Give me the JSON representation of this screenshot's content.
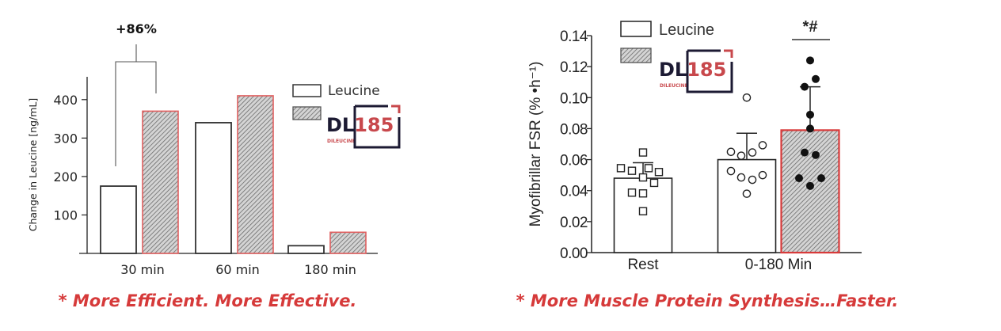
{
  "colors": {
    "accent_red": "#d63a3a",
    "logo_navy": "#1c1a33",
    "logo_red": "#c8484c",
    "bar_outline": "#222222",
    "hatch_fill": "#cfcfcf",
    "hatch_line": "#6a6a6a"
  },
  "chart_data": [
    {
      "type": "bar",
      "title": "",
      "ylabel": "Change in Leucine [ng/mL]",
      "xlabel": "",
      "ylim": [
        0,
        460
      ],
      "yticks": [
        100,
        200,
        300,
        400
      ],
      "categories": [
        "30 min",
        "60 min",
        "180 min"
      ],
      "series": [
        {
          "name": "Leucine",
          "values": [
            175,
            340,
            20
          ]
        },
        {
          "name": "DL185",
          "values": [
            370,
            410,
            55
          ]
        }
      ],
      "annotation": "+86%",
      "legend": {
        "position": "top-right",
        "items": [
          "Leucine",
          "DL185"
        ]
      },
      "logo": {
        "main": "DL",
        "number": "185",
        "sub": "DILEUCINE"
      },
      "caption": "* More Efficient. More Effective."
    },
    {
      "type": "bar",
      "title": "",
      "ylabel": "Myofibrillar FSR (% •h⁻¹)",
      "xlabel": "",
      "ylim": [
        0,
        0.14
      ],
      "yticks": [
        "0.00",
        "0.02",
        "0.04",
        "0.06",
        "0.08",
        "0.10",
        "0.12",
        "0.14"
      ],
      "categories": [
        "Rest",
        "0-180 Min"
      ],
      "bars": [
        {
          "group": "Rest",
          "series": "Leucine",
          "mean": 0.048,
          "error": 0.01,
          "marker": "square",
          "points": [
            0.0646,
            0.0545,
            0.0528,
            0.0545,
            0.052,
            0.0485,
            0.045,
            0.0387,
            0.0382,
            0.0267
          ]
        },
        {
          "group": "0-180 Min",
          "series": "Leucine",
          "mean": 0.06,
          "error": 0.017,
          "marker": "open-circle",
          "points": [
            0.1,
            0.065,
            0.0625,
            0.0646,
            0.0693,
            0.0526,
            0.0485,
            0.047,
            0.05,
            0.038
          ]
        },
        {
          "group": "0-180 Min",
          "series": "DL185",
          "mean": 0.079,
          "error": 0.028,
          "marker": "filled-circle",
          "points": [
            0.124,
            0.112,
            0.107,
            0.089,
            0.08,
            0.0646,
            0.063,
            0.048,
            0.048,
            0.043
          ]
        }
      ],
      "annotation": "*#",
      "legend": {
        "position": "top-left",
        "items": [
          "Leucine",
          "DL185"
        ]
      },
      "logo": {
        "main": "DL",
        "number": "185",
        "sub": "DILEUCINE"
      },
      "caption": "* More Muscle Protein Synthesis…Faster."
    }
  ]
}
